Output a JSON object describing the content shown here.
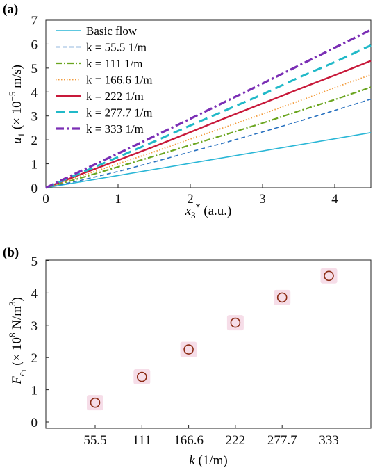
{
  "chart_data": [
    {
      "panel_label": "(a)",
      "type": "line",
      "xlabel": {
        "var": "x",
        "sub": "3",
        "sup": "*",
        "unit": " (a.u.)"
      },
      "ylabel": {
        "var": "u",
        "sub": "1",
        "pre": " (× 10",
        "exp": "−5",
        "post": " m/s)"
      },
      "xlim": [
        0,
        4.5
      ],
      "ylim": [
        0,
        7
      ],
      "xticks": [
        "0",
        "1",
        "2",
        "3",
        "4"
      ],
      "yticks": [
        "0",
        "1",
        "2",
        "3",
        "4",
        "5",
        "6",
        "7"
      ],
      "grid": false,
      "legend_position": "top-left",
      "series": [
        {
          "name": "Basic flow",
          "color": "#29b6d6",
          "style": "solid",
          "x": [
            0,
            4.5
          ],
          "y": [
            0,
            2.3
          ]
        },
        {
          "name": "k = 55.5 1/m",
          "color": "#2a72c0",
          "style": "dashed",
          "x": [
            0,
            0.5,
            1,
            1.5,
            2,
            2.5,
            3,
            3.5,
            4,
            4.5
          ],
          "y": [
            0,
            0.32,
            0.68,
            1.08,
            1.5,
            1.9,
            2.33,
            2.77,
            3.23,
            3.7
          ]
        },
        {
          "name": "k = 111 1/m",
          "color": "#6aa51f",
          "style": "dashdot",
          "x": [
            0,
            0.5,
            1,
            1.5,
            2,
            2.5,
            3,
            3.5,
            4,
            4.5
          ],
          "y": [
            0,
            0.42,
            0.87,
            1.32,
            1.78,
            2.23,
            2.7,
            3.2,
            3.68,
            4.2
          ]
        },
        {
          "name": "k = 166.6 1/m",
          "color": "#f29a3a",
          "style": "dotted",
          "x": [
            0,
            0.5,
            1,
            1.5,
            2,
            2.5,
            3,
            3.5,
            4,
            4.5
          ],
          "y": [
            0,
            0.5,
            1.0,
            1.5,
            2.03,
            2.55,
            3.08,
            3.62,
            4.18,
            4.72
          ]
        },
        {
          "name": "k = 222 1/m",
          "color": "#c8193a",
          "style": "solid-thick",
          "x": [
            0,
            0.5,
            1,
            1.5,
            2,
            2.5,
            3,
            3.5,
            4,
            4.5
          ],
          "y": [
            0,
            0.58,
            1.15,
            1.72,
            2.32,
            2.93,
            3.52,
            4.12,
            4.7,
            5.3
          ]
        },
        {
          "name": "k = 277.7 1/m",
          "color": "#21b9c8",
          "style": "longdash",
          "x": [
            0,
            0.5,
            1,
            1.5,
            2,
            2.5,
            3,
            3.5,
            4,
            4.5
          ],
          "y": [
            0,
            0.64,
            1.28,
            1.93,
            2.6,
            3.25,
            3.9,
            4.6,
            5.25,
            5.95
          ]
        },
        {
          "name": "k = 333 1/m",
          "color": "#7b2fb5",
          "style": "dashdot-thick",
          "x": [
            0,
            0.5,
            1,
            1.5,
            2,
            2.5,
            3,
            3.5,
            4,
            4.5
          ],
          "y": [
            0,
            0.72,
            1.43,
            2.15,
            2.88,
            3.62,
            4.35,
            5.1,
            5.85,
            6.6
          ]
        }
      ]
    },
    {
      "panel_label": "(b)",
      "type": "scatter",
      "xlabel": {
        "var": "k",
        "unit": " (1/m)"
      },
      "ylabel": {
        "var": "F",
        "sub": "e",
        "subsub": "1",
        "pre": " (× 10",
        "exp": "8",
        "post": " N/m",
        "post_exp": "3",
        "close": ")"
      },
      "categories": [
        "55.5",
        "111",
        "166.6",
        "222",
        "277.7",
        "333"
      ],
      "values": [
        0.6,
        1.4,
        2.25,
        3.08,
        3.86,
        4.53
      ],
      "ylim": [
        0,
        5
      ],
      "yticks": [
        "0",
        "1",
        "2",
        "3",
        "4",
        "5"
      ],
      "grid": false,
      "marker_color": "#8b2a12",
      "highlight_color": "#f6dde8"
    }
  ]
}
